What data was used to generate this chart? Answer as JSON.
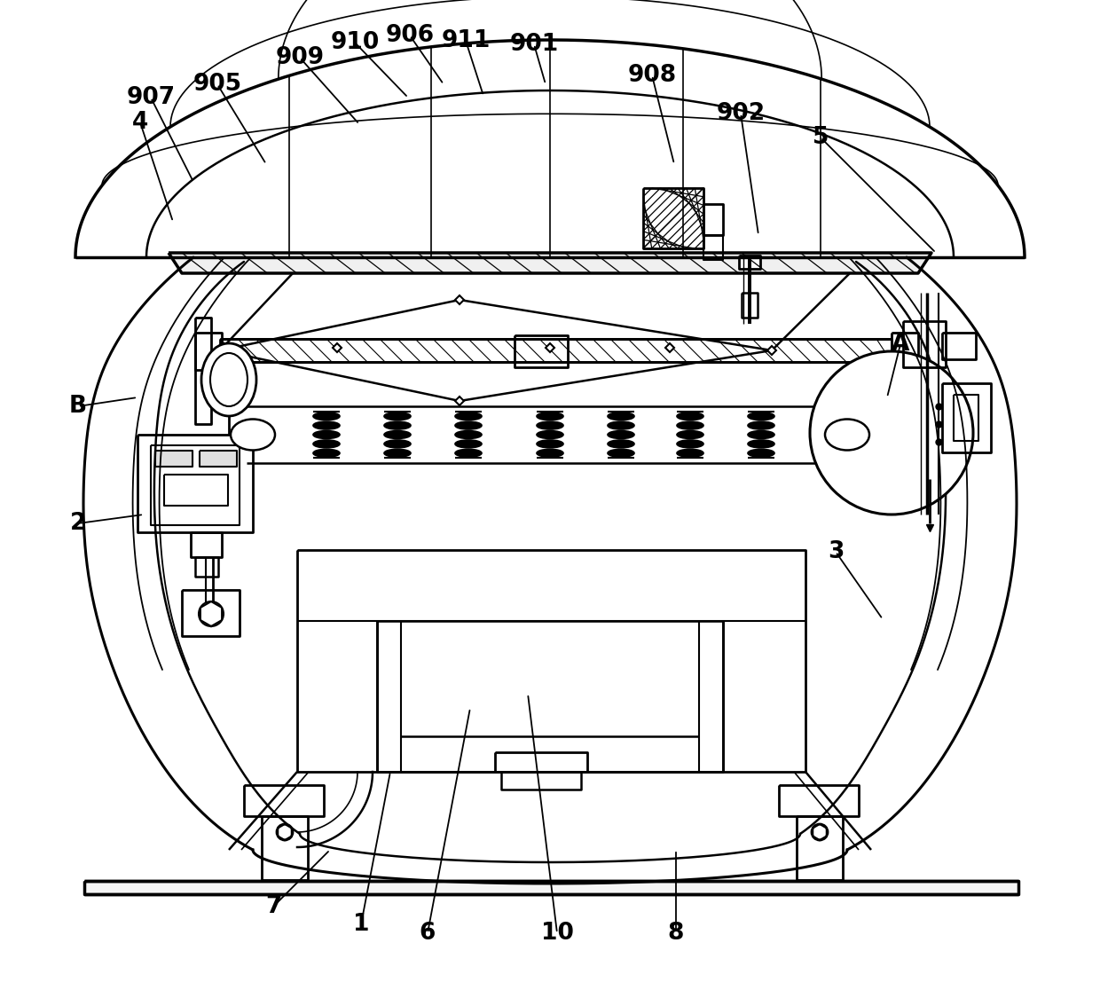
{
  "background_color": "#ffffff",
  "line_color": "#000000",
  "label_fontsize": 19,
  "fig_width": 12.4,
  "fig_height": 11.16,
  "labels_data": [
    [
      "905",
      245,
      95,
      300,
      185
    ],
    [
      "909",
      338,
      65,
      405,
      140
    ],
    [
      "910",
      400,
      48,
      460,
      110
    ],
    [
      "906",
      462,
      40,
      500,
      95
    ],
    [
      "911",
      525,
      46,
      545,
      108
    ],
    [
      "901",
      602,
      50,
      615,
      95
    ],
    [
      "908",
      735,
      85,
      760,
      185
    ],
    [
      "902",
      835,
      128,
      855,
      265
    ],
    [
      "907",
      170,
      110,
      218,
      205
    ],
    [
      "4",
      158,
      138,
      195,
      250
    ],
    [
      "5",
      925,
      155,
      1055,
      285
    ],
    [
      "A",
      1015,
      388,
      1000,
      448
    ],
    [
      "B",
      88,
      458,
      155,
      448
    ],
    [
      "2",
      88,
      590,
      162,
      580
    ],
    [
      "3",
      942,
      622,
      995,
      698
    ],
    [
      "7",
      308,
      1022,
      372,
      958
    ],
    [
      "1",
      407,
      1042,
      440,
      870
    ],
    [
      "6",
      482,
      1052,
      530,
      798
    ],
    [
      "10",
      628,
      1052,
      595,
      782
    ],
    [
      "8",
      762,
      1052,
      762,
      958
    ]
  ]
}
